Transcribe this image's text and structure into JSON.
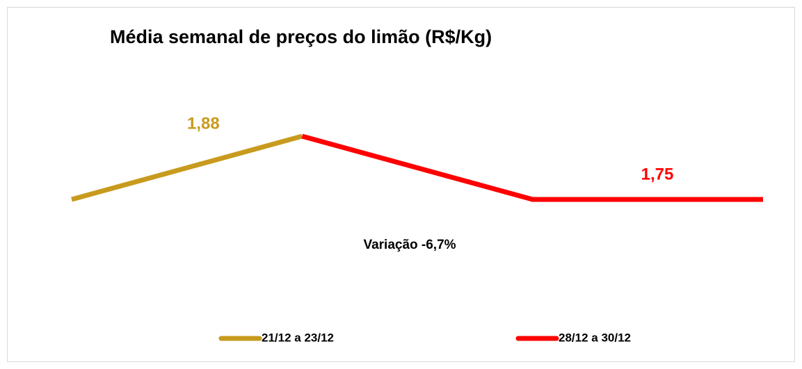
{
  "chart_data": {
    "type": "line",
    "title": "Média semanal de preços do limão (R$/Kg)",
    "annotation": "Variação -6,7%",
    "categories": [
      null,
      null,
      null,
      null
    ],
    "ylim": [
      1.5,
      2.0
    ],
    "legend": "bottom",
    "series": [
      {
        "name": "21/12 a 23/12",
        "color": "#c89b1e",
        "values": [
          1.75,
          1.88,
          null,
          null
        ],
        "value_labels": [
          null,
          "1,88",
          null,
          null
        ]
      },
      {
        "name": "28/12 a 30/12",
        "color": "#ff0000",
        "values": [
          null,
          1.88,
          1.75,
          1.75
        ],
        "value_labels": [
          null,
          null,
          null,
          "1,75"
        ]
      }
    ]
  }
}
